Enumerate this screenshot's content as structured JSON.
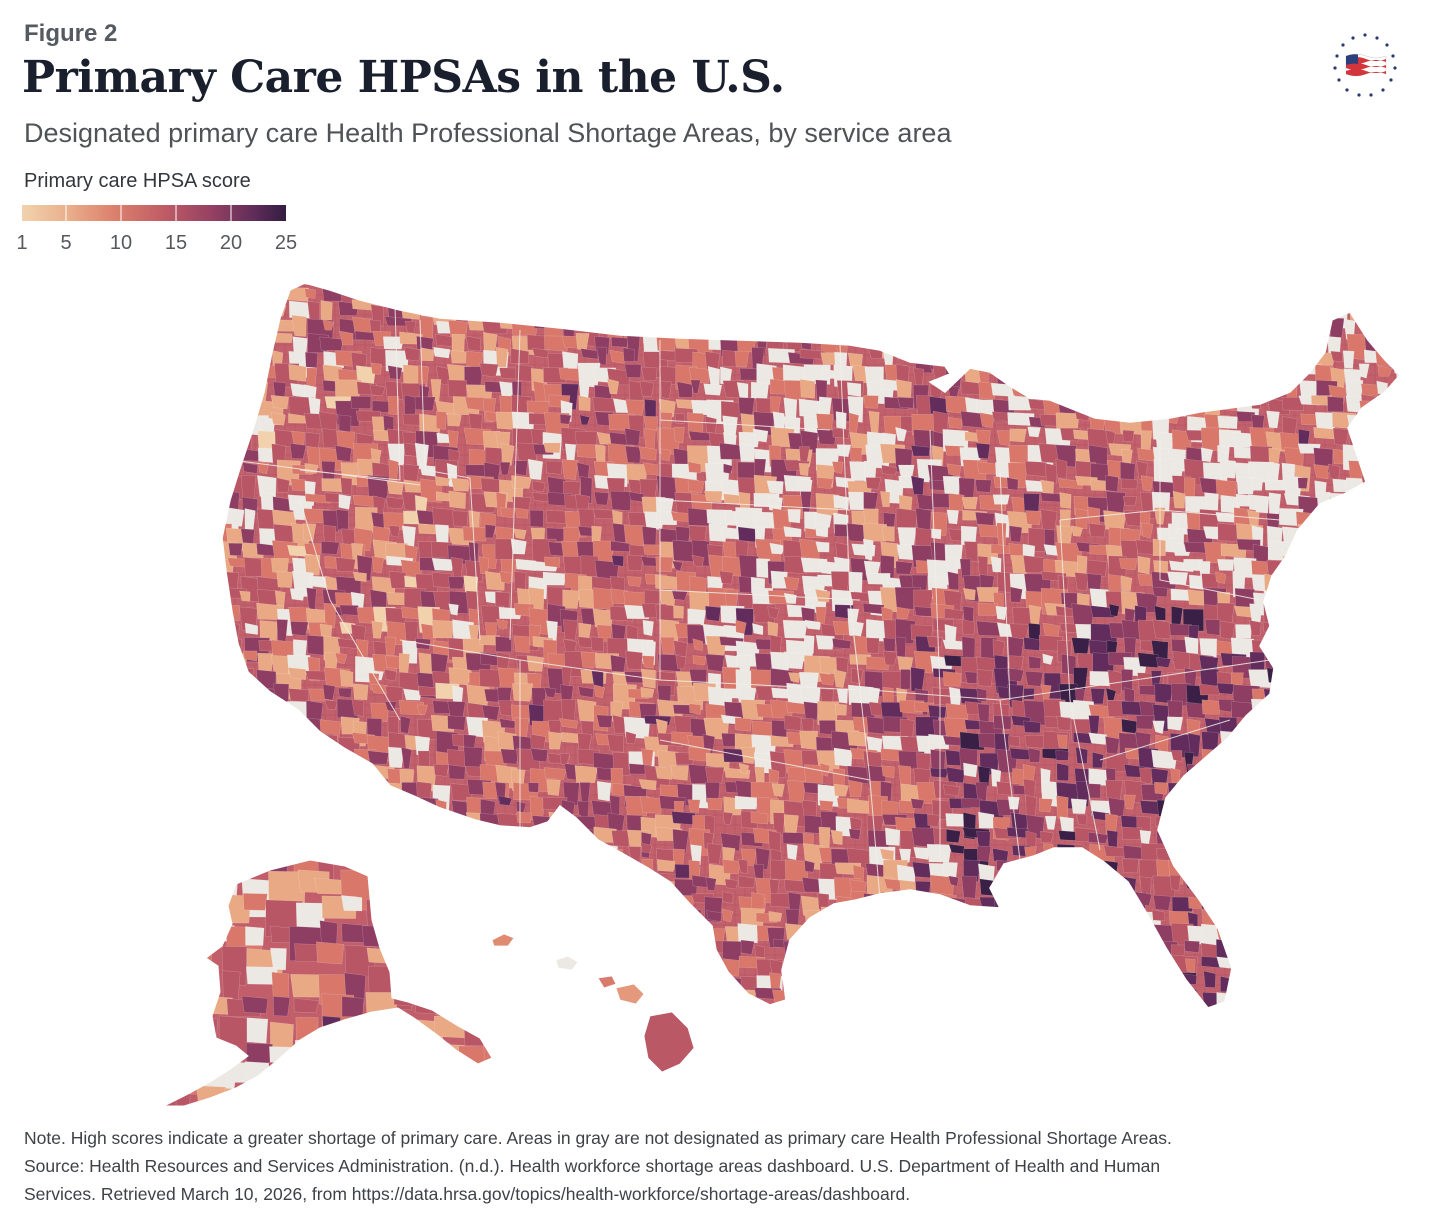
{
  "header": {
    "figure_label": "Figure 2",
    "title": "Primary Care HPSAs in the U.S.",
    "subtitle": "Designated primary care Health Professional Shortage Areas, by service area"
  },
  "legend": {
    "title": "Primary care HPSA score",
    "ticks": [
      "1",
      "5",
      "10",
      "15",
      "20",
      "25"
    ],
    "tick_values": [
      1,
      5,
      10,
      15,
      20,
      25
    ],
    "range": [
      1,
      25
    ],
    "colors": [
      "#f1d2ad",
      "#e9a984",
      "#d8776a",
      "#b85665",
      "#8e3e63",
      "#622c5c",
      "#3a1f46"
    ],
    "not_designated_color": "#ece8e4"
  },
  "note": {
    "line1": "Note. High scores indicate a greater shortage of primary care. Areas in gray are not designated as primary care Health Professional Shortage Areas.",
    "line2": "Source: Health Resources and Services Administration. (n.d.). Health workforce shortage areas dashboard. U.S. Department of Health and Human",
    "line3": "Services. Retrieved March 10, 2026, from https://data.hrsa.gov/topics/health-workforce/shortage-areas/dashboard."
  }
}
